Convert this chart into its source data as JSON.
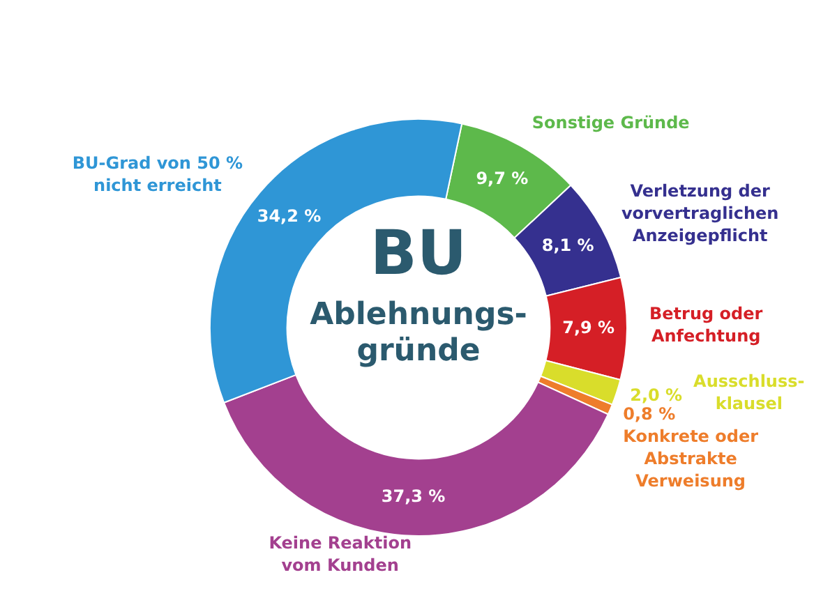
{
  "chart_data": {
    "type": "donut",
    "title": "BU",
    "subtitle": "Ablehnungs-gründe",
    "categories": [
      "Sonstige Gründe",
      "Verletzung der vorvertraglichen Anzeigepflicht",
      "Betrug oder Anfechtung",
      "Ausschluss-klausel",
      "Konkrete oder Abstrakte Verweisung",
      "Keine Reaktion vom Kunden",
      "BU-Grad von 50 % nicht erreicht"
    ],
    "values": [
      9.7,
      8.1,
      7.9,
      2.0,
      0.8,
      37.3,
      34.2
    ],
    "value_labels": [
      "9,7 %",
      "8,1 %",
      "7,9 %",
      "2,0 %",
      "0,8 %",
      "37,3 %",
      "34,2 %"
    ],
    "colors": [
      "#5db94b",
      "#35308f",
      "#d51f26",
      "#d9dd2b",
      "#ee7d2b",
      "#a3408f",
      "#2f96d6"
    ],
    "legend": false
  }
}
